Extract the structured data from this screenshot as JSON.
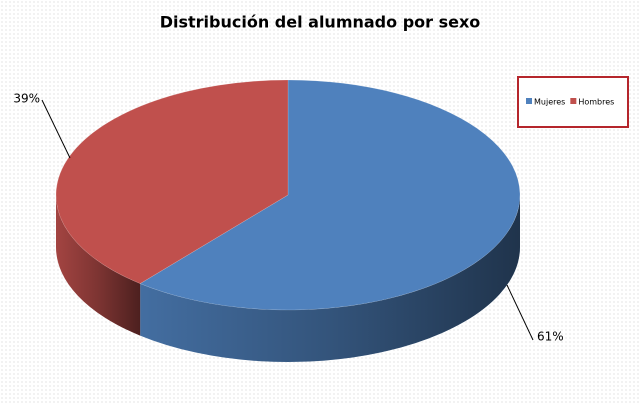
{
  "chart_data": {
    "type": "pie",
    "title": "Distribución  del alumnado  por sexo",
    "categories": [
      "Mujeres",
      "Hombres"
    ],
    "values": [
      61,
      39
    ],
    "value_labels": [
      "61%",
      "39%"
    ],
    "colors": [
      "#4f81bd",
      "#c0504d"
    ],
    "legend": "top-right"
  }
}
